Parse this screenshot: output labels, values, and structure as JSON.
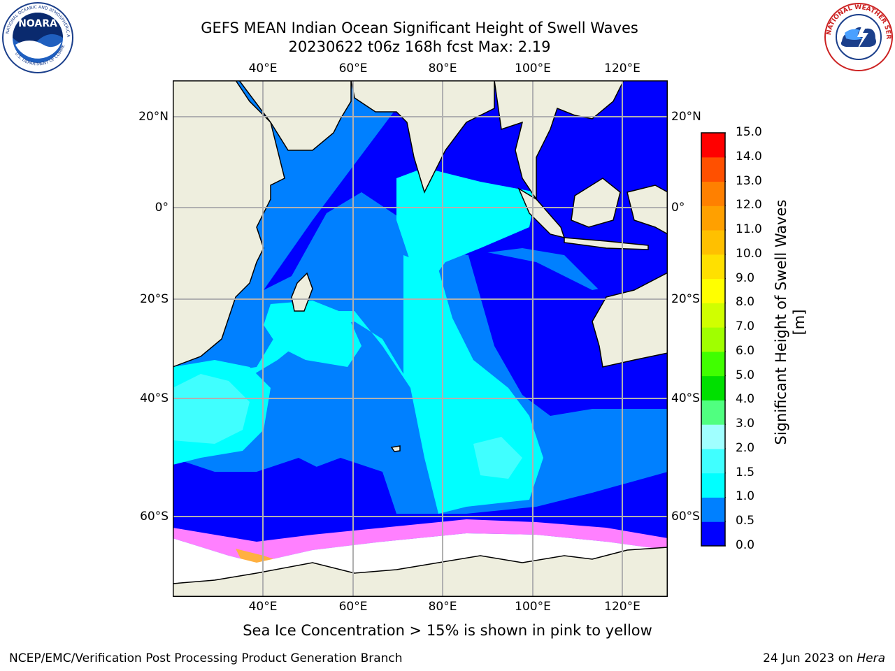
{
  "title_line1": "GEFS MEAN Indian Ocean Significant Height of Swell Waves",
  "title_line2": "20230622 t06z 168h fcst   Max: 2.19",
  "lon_labels": [
    "40°E",
    "60°E",
    "80°E",
    "100°E",
    "120°E"
  ],
  "lat_labels": [
    "20°N",
    "0°",
    "20°S",
    "40°S",
    "60°S"
  ],
  "map_extent": {
    "lon_min": 20,
    "lon_max": 129,
    "lat_min": -71,
    "lat_max": 27
  },
  "colorbar": {
    "title": "Significant Height of Swell Waves [m]",
    "levels": [
      "0.0",
      "0.5",
      "1.0",
      "1.5",
      "2.0",
      "3.0",
      "4.0",
      "5.0",
      "6.0",
      "7.0",
      "8.0",
      "9.0",
      "10.0",
      "11.0",
      "12.0",
      "13.0",
      "14.0",
      "15.0"
    ],
    "colors": [
      "#0000ff",
      "#0080ff",
      "#00ffff",
      "#40ffff",
      "#a0ffff",
      "#50ff80",
      "#00e000",
      "#40ff00",
      "#a0ff00",
      "#d0ff00",
      "#ffff00",
      "#ffe000",
      "#ffc000",
      "#ffa000",
      "#ff8000",
      "#ff5000",
      "#ff0000"
    ]
  },
  "colors": {
    "land": "#eeeede",
    "ocean_low": "#0000ff",
    "ocean_mid": "#0080ff",
    "ocean_high": "#00ffff",
    "ocean_peak": "#40ffff",
    "ice": "#ff80ff",
    "grid": "#b0b0b0"
  },
  "footnote": "Sea Ice Concentration > 15% is shown in pink to yellow",
  "credit": "NCEP/EMC/Verification Post Processing Product Generation Branch",
  "date": "24 Jun 2023 on",
  "machine": "Hera",
  "logos": {
    "left": "NOARA",
    "left_ring": "NATIONAL OCEANIC AND ATMOSPHERIC ADMINISTRATION",
    "left_ring2": "U.S. DEPARTMENT OF COMMERCE",
    "right_ring": "NATIONAL WEATHER SERVICE"
  }
}
